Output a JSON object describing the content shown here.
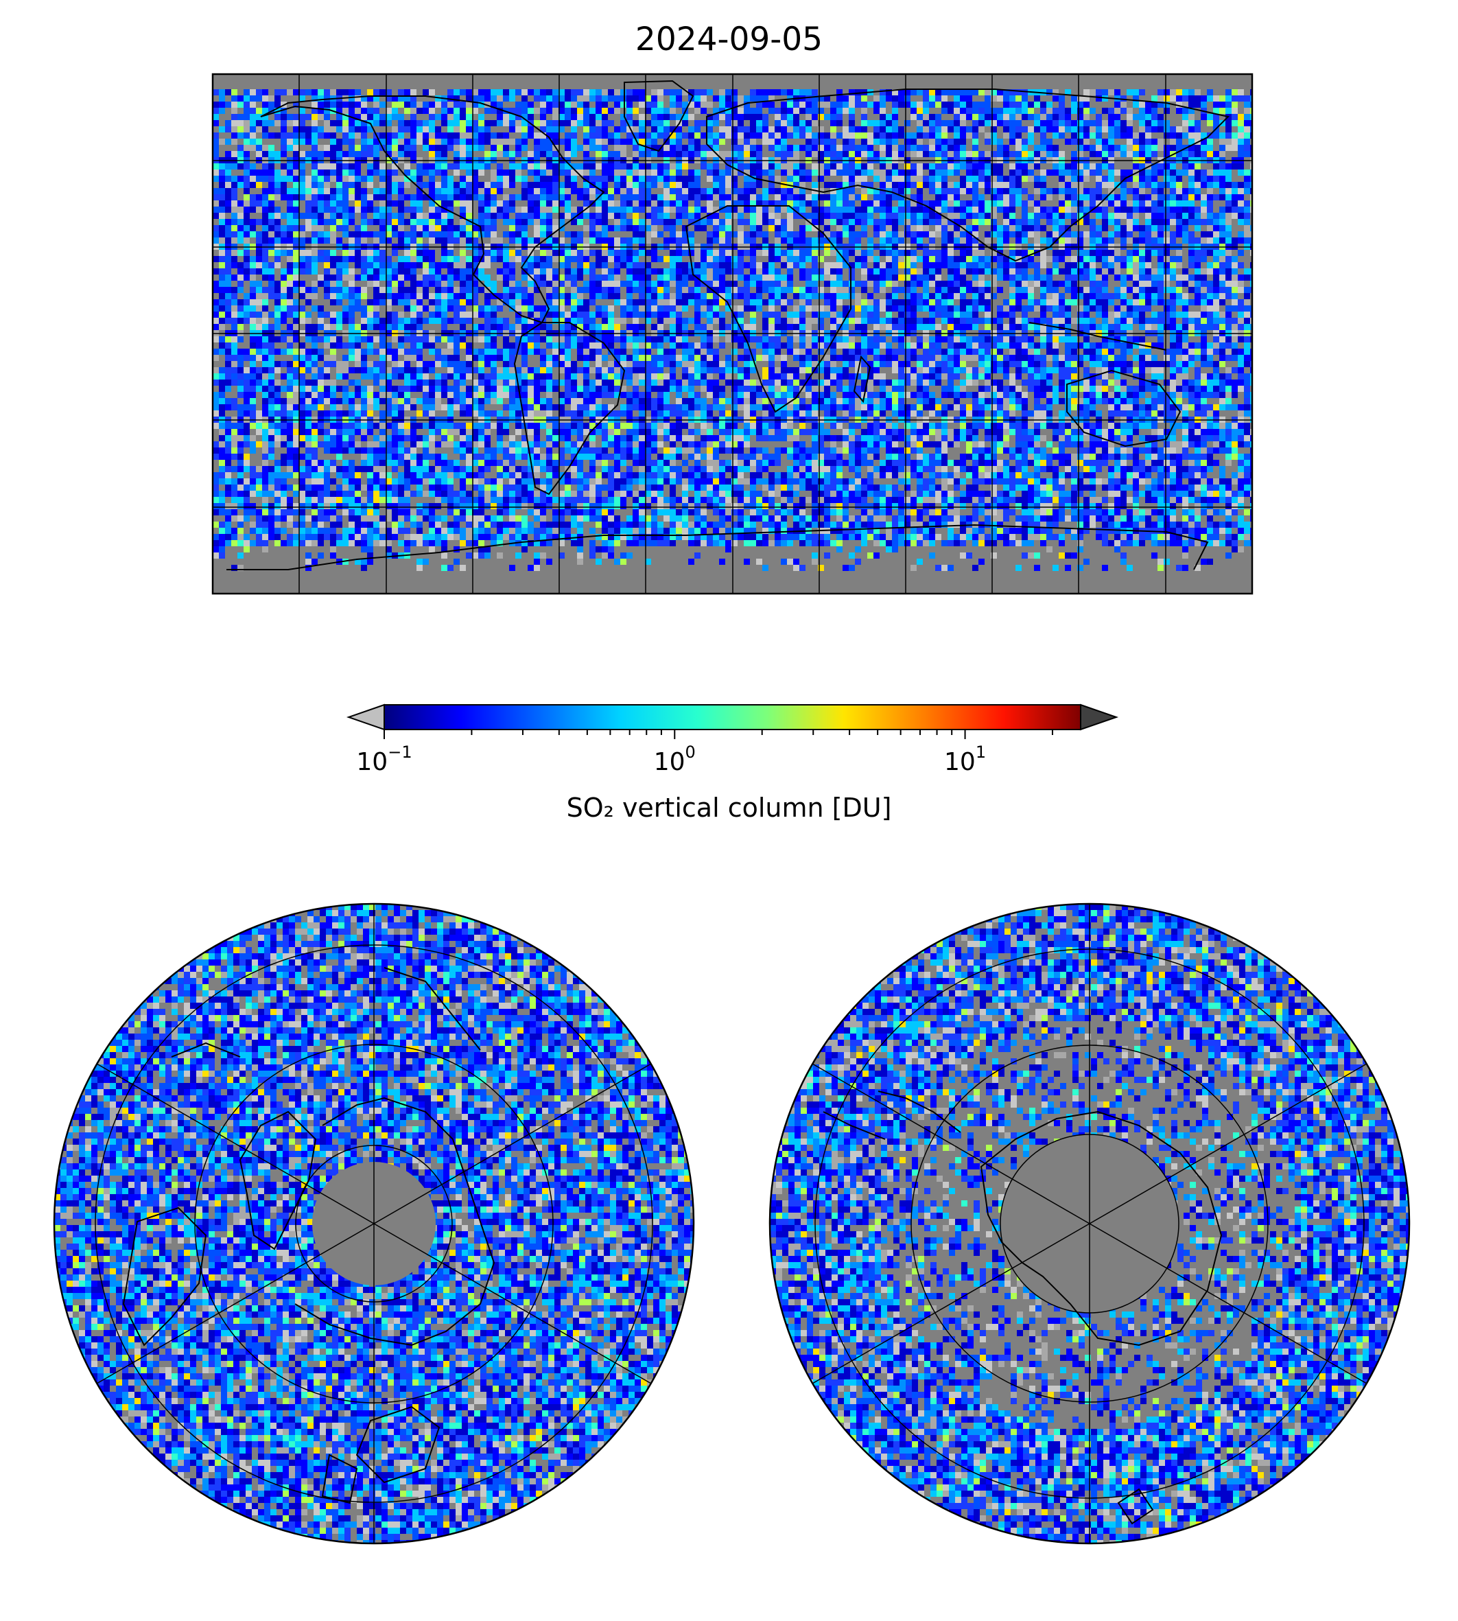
{
  "figure": {
    "title": "2024-09-05"
  },
  "colorbar": {
    "label": "SO₂ vertical column [DU]",
    "scale": "log",
    "range": [
      0.1,
      25
    ],
    "extend": "both",
    "under_color": "#c0c0c0",
    "over_color": "#404040",
    "colormap": "jet",
    "ticks": [
      {
        "base": "10",
        "exp": "−1",
        "value": 0.1
      },
      {
        "base": "10",
        "exp": "0",
        "value": 1
      },
      {
        "base": "10",
        "exp": "1",
        "value": 10
      }
    ]
  },
  "maps": [
    {
      "projection": "plate-carree",
      "name": "global"
    },
    {
      "projection": "north-polar-stereographic",
      "name": "north-pole"
    },
    {
      "projection": "south-polar-stereographic",
      "name": "south-pole"
    }
  ],
  "colors": {
    "no_data": "#808080",
    "low": "#c8c8c8",
    "coastline": "#000000",
    "gridline": "#000000"
  }
}
